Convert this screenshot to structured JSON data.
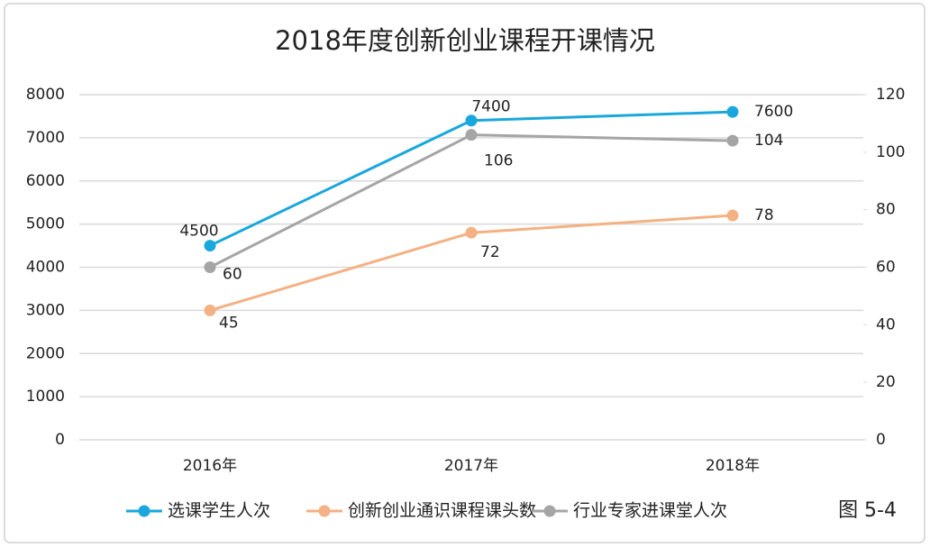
{
  "chart_data": {
    "type": "line",
    "title": "2018年度创新创业课程开课情况",
    "categories": [
      "2016年",
      "2017年",
      "2018年"
    ],
    "series": [
      {
        "name": "选课学生人次",
        "color": "#1aa7dd",
        "values": [
          4500,
          7400,
          7600
        ]
      },
      {
        "name": "创新创业通识课程课头数",
        "color": "#f4b183",
        "values": [
          45,
          72,
          78
        ],
        "axis": "y2"
      },
      {
        "name": "行业专家进课堂人次",
        "color": "#a5a5a5",
        "values": [
          60,
          106,
          104
        ],
        "axis": "y2"
      }
    ],
    "ylim": [
      0,
      8000
    ],
    "yticks": [
      0,
      1000,
      2000,
      3000,
      4000,
      5000,
      6000,
      7000,
      8000
    ],
    "y2lim": [
      0,
      120
    ],
    "y2ticks": [
      0,
      20,
      40,
      60,
      80,
      100,
      120
    ],
    "grid": true,
    "legend": "bottom",
    "annotation": "图 5-4"
  }
}
